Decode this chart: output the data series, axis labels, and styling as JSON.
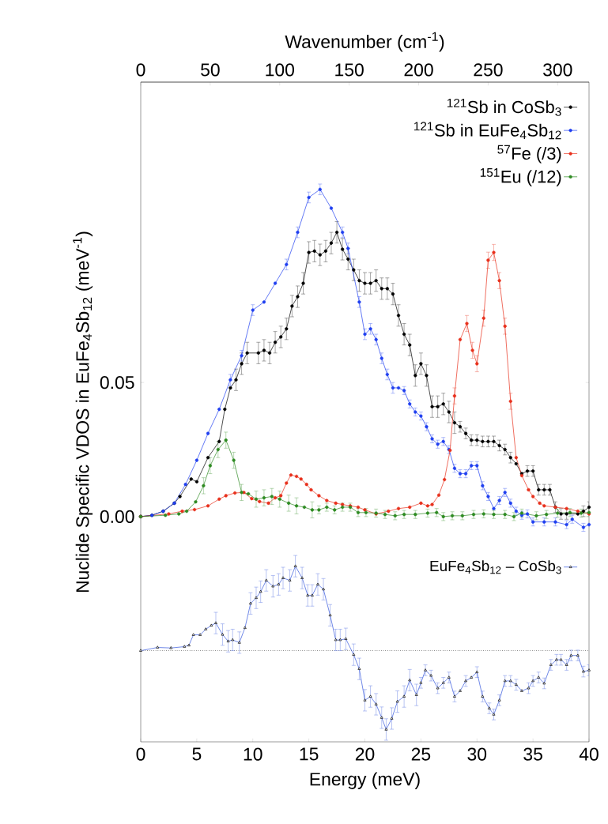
{
  "chart_data": {
    "type": "line",
    "xlabel": "Energy (meV)",
    "ylabel": "Nuclide Specific VDOS in EuFe$_{4}$Sb$_{12}$ (meV$^{-1}$)",
    "x2label": "Wavenumber (cm$^{-1}$)",
    "xlim": [
      0,
      40
    ],
    "xticks": [
      0,
      5,
      10,
      15,
      20,
      25,
      30,
      35,
      40
    ],
    "x2lim": [
      0,
      322.6
    ],
    "x2ticks": [
      0,
      50,
      100,
      150,
      200,
      250,
      300
    ],
    "ylim": [
      -0.084,
      0.162
    ],
    "yticks": [
      {
        "value": 0,
        "label": "0.00"
      },
      {
        "value": 0.05,
        "label": "0.05"
      }
    ],
    "legend": "top right",
    "grid": false,
    "ref_lines": [
      {
        "axis": "y",
        "value": -0.05,
        "line_style": "dotted",
        "color": "#000000"
      }
    ],
    "series": [
      {
        "name": "$^{121}$Sb in CoSb$_{3}$",
        "color": "#000000",
        "marker": "circle",
        "x": [
          0,
          1,
          2,
          3,
          3.5,
          4.5,
          5,
          6,
          7,
          7.5,
          8,
          8.5,
          9,
          9.5,
          10.5,
          11,
          11.5,
          12,
          12.5,
          13,
          13.5,
          14,
          14.5,
          15,
          15.5,
          16,
          16.5,
          17,
          17.5,
          18,
          18.5,
          19,
          19.5,
          20,
          20.5,
          21,
          21.5,
          22,
          22.5,
          23,
          23.5,
          24,
          24.5,
          25,
          25.5,
          26,
          26.5,
          27,
          27.5,
          28,
          28.5,
          29,
          29.5,
          30,
          30.5,
          31,
          31.5,
          32,
          32.5,
          33,
          33.5,
          34,
          34.5,
          35,
          35.5,
          36,
          36.5,
          37,
          37.5,
          38,
          39,
          39.5,
          40
        ],
        "values": [
          0,
          0.0005,
          0.002,
          0.005,
          0.0075,
          0.014,
          0.013,
          0.022,
          0.028,
          0.04,
          0.048,
          0.051,
          0.057,
          0.061,
          0.061,
          0.062,
          0.061,
          0.065,
          0.067,
          0.07,
          0.0785,
          0.082,
          0.087,
          0.0985,
          0.099,
          0.0976,
          0.099,
          0.102,
          0.106,
          0.0997,
          0.096,
          0.092,
          0.088,
          0.087,
          0.087,
          0.088,
          0.085,
          0.085,
          0.083,
          0.075,
          0.068,
          0.064,
          0.0526,
          0.057,
          0.0526,
          0.041,
          0.041,
          0.042,
          0.039,
          0.035,
          0.0335,
          0.031,
          0.0285,
          0.0285,
          0.028,
          0.028,
          0.028,
          0.0265,
          0.025,
          0.022,
          0.0197,
          0.016,
          0.017,
          0.017,
          0.01,
          0.01,
          0.01,
          0.0035,
          0.001,
          0.001,
          0.001,
          0.002,
          0.0035
        ],
        "errors": [
          null,
          null,
          null,
          null,
          null,
          null,
          null,
          null,
          null,
          null,
          null,
          0.004,
          0.004,
          0.004,
          0.004,
          0.004,
          0.004,
          0.004,
          0.004,
          0.004,
          0.004,
          0.004,
          0.004,
          0.004,
          0.004,
          0.004,
          0.004,
          0.004,
          0.004,
          0.004,
          0.004,
          0.004,
          0.004,
          0.004,
          0.004,
          0.004,
          0.004,
          0.004,
          0.004,
          0.004,
          0.004,
          0.004,
          0.004,
          0.004,
          0.004,
          0.004,
          0.004,
          0.004,
          0.004,
          0.004,
          0.002,
          0.002,
          0.002,
          0.002,
          0.002,
          0.002,
          0.002,
          0.002,
          0.002,
          0.002,
          null,
          null,
          0.002,
          0.002,
          0.002,
          0.002,
          0.002,
          0.002,
          0.002,
          0.002,
          null,
          0.002,
          0.002
        ]
      },
      {
        "name": "$^{121}$Sb in EuFe$_{4}$Sb$_{12}$",
        "color": "#1f3ff0",
        "marker": "circle",
        "x": [
          0,
          1,
          2,
          3,
          4,
          5,
          6,
          7,
          8,
          9,
          10,
          11,
          12,
          13,
          14,
          15,
          16,
          17,
          18,
          18.5,
          19.5,
          20,
          20.5,
          21,
          21.5,
          22,
          22.5,
          23,
          23.5,
          24,
          24.5,
          25,
          25.5,
          26,
          26.5,
          27,
          27.5,
          28,
          28.5,
          29,
          29.5,
          30,
          30.5,
          31,
          31.5,
          32,
          32.5,
          33,
          33.5,
          34,
          34.5,
          35,
          36,
          37,
          38,
          38.5,
          39.5,
          40
        ],
        "values": [
          0,
          0.0005,
          0.002,
          0.005,
          0.012,
          0.021,
          0.031,
          0.04,
          0.051,
          0.06,
          0.077,
          0.08,
          0.087,
          0.094,
          0.106,
          0.119,
          0.122,
          0.115,
          0.106,
          0.1,
          0.08,
          0.068,
          0.07,
          0.066,
          0.059,
          0.053,
          0.048,
          0.048,
          0.047,
          0.042,
          0.039,
          0.0375,
          0.0335,
          0.029,
          0.027,
          0.028,
          0.025,
          0.018,
          0.016,
          0.016,
          0.019,
          0.019,
          0.0115,
          0.0075,
          0.003,
          0.006,
          0.009,
          0.005,
          0.002,
          0.0005,
          0.001,
          -0.002,
          -0.002,
          -0.002,
          -0.003,
          -0.001,
          -0.004,
          -0.003
        ],
        "errors": [
          null,
          null,
          null,
          null,
          null,
          null,
          null,
          null,
          0.002,
          0.002,
          0.002,
          null,
          null,
          0.002,
          0.002,
          0.002,
          0.002,
          null,
          0.002,
          0.002,
          0.002,
          0.002,
          0.002,
          0.002,
          0.002,
          0.002,
          0.002,
          null,
          0.0015,
          0.0015,
          0.0015,
          0.0015,
          0.0015,
          0.0015,
          0.0015,
          0.0015,
          0.0015,
          0.0015,
          0.0015,
          0.0015,
          0.0015,
          0.0015,
          0.0015,
          0.0015,
          null,
          0.0015,
          0.0015,
          0.0015,
          0.0015,
          0.0015,
          0.0015,
          0.0015,
          0.0015,
          0.0015,
          0.0015,
          0.0015,
          0.0015,
          null
        ]
      },
      {
        "name": "$^{57}$Fe (/3)",
        "color": "#e8301c",
        "marker": "circle",
        "x": [
          0,
          2.5,
          3.7,
          4.8,
          6,
          7,
          7.6,
          8.4,
          9.2,
          9.9,
          10.6,
          11.4,
          12,
          12.5,
          13,
          13.4,
          13.9,
          14.3,
          14.8,
          15.2,
          15.9,
          16.6,
          17.4,
          18,
          18.7,
          19.4,
          20,
          21,
          22.1,
          23,
          24,
          25,
          25.6,
          26,
          26.6,
          27.1,
          27.6,
          28,
          28.5,
          29.1,
          29.6,
          30,
          30.6,
          31,
          31.5,
          32,
          32.5,
          33,
          33.5,
          34,
          34.6,
          35,
          35.6,
          36,
          37,
          38,
          39,
          40
        ],
        "values": [
          0,
          0.001,
          0.002,
          0.0026,
          0.004,
          0.0065,
          0.0078,
          0.0088,
          0.009,
          0.0067,
          0.0056,
          0.005,
          0.007,
          0.0078,
          0.0125,
          0.0155,
          0.015,
          0.014,
          0.012,
          0.01,
          0.0078,
          0.006,
          0.005,
          0.0045,
          0.004,
          0.0035,
          0.0025,
          0.001,
          0.002,
          0.003,
          0.0035,
          0.005,
          0.004,
          0.0045,
          0.008,
          0.0138,
          0.0247,
          0.045,
          0.066,
          0.072,
          0.062,
          0.057,
          0.074,
          0.0956,
          0.0985,
          0.088,
          0.071,
          0.043,
          0.022,
          0.0153,
          0.01,
          0.0075,
          0.005,
          0.004,
          0.0035,
          0.003,
          0.002,
          0.001
        ],
        "errors": [
          null,
          null,
          null,
          null,
          null,
          null,
          null,
          null,
          null,
          null,
          null,
          null,
          null,
          null,
          null,
          null,
          null,
          null,
          null,
          null,
          null,
          null,
          null,
          null,
          null,
          null,
          null,
          null,
          null,
          null,
          null,
          null,
          null,
          null,
          null,
          null,
          null,
          0.003,
          null,
          0.003,
          0.003,
          0.003,
          0.003,
          0.003,
          0.003,
          0.003,
          0.003,
          0.003,
          null,
          null,
          null,
          null,
          null,
          null,
          null,
          null,
          null,
          null
        ]
      },
      {
        "name": "$^{151}$Eu (/12)",
        "color": "#2e8b22",
        "marker": "circle",
        "x": [
          0,
          2.2,
          3.4,
          4.1,
          4.9,
          5.6,
          6.2,
          6.9,
          7.6,
          8.3,
          9,
          9.6,
          10.3,
          11,
          11.7,
          12.4,
          13.2,
          13.9,
          14.6,
          15.3,
          15.9,
          16.6,
          17.3,
          18,
          18.7,
          19.4,
          20.1,
          21,
          21.8,
          22.7,
          23.5,
          24.5,
          25.6,
          26.4,
          27,
          27.8,
          28.7,
          29.7,
          30.6,
          31.5,
          32.5,
          33.3,
          34,
          35.3,
          36.2,
          37.2,
          38.3,
          39.3,
          40
        ],
        "values": [
          0,
          0.0005,
          0.001,
          0.002,
          0.0055,
          0.0115,
          0.019,
          0.025,
          0.0285,
          0.021,
          0.009,
          0.0085,
          0.0065,
          0.007,
          0.0075,
          0.0065,
          0.005,
          0.004,
          0.0035,
          0.0025,
          0.0025,
          0.0035,
          0.0025,
          0.0035,
          0.0035,
          0.0015,
          0.0015,
          0.0013,
          0.0008,
          0.0003,
          0.0008,
          0.0008,
          0.0013,
          0.0015,
          0,
          0.0003,
          0.0003,
          0.0008,
          0.001,
          0.0008,
          0.0008,
          0,
          0.0013,
          0.0003,
          0.0008,
          0.0013,
          0.0015,
          0.0013,
          0.0015
        ],
        "errors": [
          null,
          null,
          null,
          null,
          null,
          0.003,
          0.003,
          0.003,
          0.003,
          0.003,
          0.003,
          null,
          0.003,
          0.003,
          0.003,
          0.003,
          0.003,
          0.003,
          null,
          0.003,
          0.0015,
          0.0015,
          0.0015,
          0.0015,
          0.0015,
          0.0015,
          0.0015,
          0.0015,
          0.0015,
          0.0015,
          0.0015,
          0.0015,
          0.0015,
          0.0015,
          0.0015,
          0.0015,
          0.0015,
          0.0015,
          0.0015,
          0.0015,
          0.0015,
          0.0015,
          0.0015,
          0.0015,
          0.0015,
          0.0015,
          0.0015,
          0.0015,
          0.0015
        ]
      },
      {
        "name": "EuFe$_{4}$Sb$_{12}$ – CoSb$_{3}$",
        "color": "#3355dd",
        "marker": "triangle",
        "x": [
          0,
          1.5,
          2.7,
          3.9,
          4.3,
          4.7,
          5.3,
          5.8,
          6.3,
          6.7,
          7.3,
          7.8,
          8.2,
          8.8,
          9.3,
          9.8,
          10.3,
          10.7,
          11.2,
          11.8,
          12.3,
          12.7,
          13.3,
          13.8,
          14.4,
          14.9,
          15.3,
          15.8,
          16.3,
          16.9,
          17.4,
          17.8,
          18.3,
          19,
          19.5,
          20,
          20.5,
          21,
          21.5,
          21.9,
          22.4,
          22.9,
          23.5,
          24,
          24.6,
          25,
          25.4,
          25.9,
          26.5,
          27,
          27.5,
          28,
          28.5,
          29,
          29.5,
          30,
          30.5,
          31.1,
          31.5,
          32,
          32.5,
          33,
          33.5,
          34,
          34.6,
          35,
          35.5,
          36,
          36.6,
          37.1,
          37.5,
          38,
          38.4,
          39,
          39.5,
          40
        ],
        "values": [
          -0.05,
          -0.0488,
          -0.049,
          -0.0485,
          -0.048,
          -0.0441,
          -0.0441,
          -0.042,
          -0.0406,
          -0.0397,
          -0.044,
          -0.0465,
          -0.046,
          -0.047,
          -0.0415,
          -0.0324,
          -0.0303,
          -0.028,
          -0.0238,
          -0.026,
          -0.0253,
          -0.0229,
          -0.0238,
          -0.0185,
          -0.0229,
          -0.0294,
          -0.0294,
          -0.0253,
          -0.0271,
          -0.0368,
          -0.046,
          -0.046,
          -0.0456,
          -0.0515,
          -0.0568,
          -0.0685,
          -0.0671,
          -0.07,
          -0.075,
          -0.0794,
          -0.0753,
          -0.069,
          -0.0671,
          -0.061,
          -0.0665,
          -0.062,
          -0.0573,
          -0.0593,
          -0.064,
          -0.062,
          -0.06,
          -0.0671,
          -0.065,
          -0.0613,
          -0.06,
          -0.058,
          -0.0671,
          -0.0715,
          -0.0738,
          -0.0685,
          -0.0613,
          -0.0613,
          -0.0627,
          -0.065,
          -0.064,
          -0.0613,
          -0.06,
          -0.0622,
          -0.0553,
          -0.0534,
          -0.0534,
          -0.0553,
          -0.0518,
          -0.0518,
          -0.0578,
          -0.0573
        ],
        "errors": [
          null,
          null,
          null,
          null,
          null,
          null,
          null,
          null,
          null,
          0.004,
          0.004,
          0.004,
          0.004,
          0.004,
          null,
          0.004,
          0.004,
          0.004,
          0.004,
          0.004,
          0.004,
          0.004,
          0.004,
          0.004,
          0.004,
          0.004,
          0.004,
          0.004,
          0.004,
          0.004,
          0.004,
          0.004,
          0.004,
          0.004,
          0.004,
          0.004,
          0.004,
          0.004,
          0.004,
          0.004,
          0.004,
          0.004,
          0.004,
          0.004,
          0.004,
          0.002,
          0.002,
          0.002,
          0.002,
          0.002,
          0.002,
          0.002,
          null,
          0.002,
          null,
          0.002,
          0.002,
          0.002,
          0.002,
          0.002,
          0.002,
          0.002,
          0.002,
          null,
          0.002,
          0.002,
          0.002,
          0.002,
          0.002,
          0.002,
          0.002,
          0.002,
          0.002,
          0.002,
          0.002,
          0.002
        ]
      }
    ]
  }
}
